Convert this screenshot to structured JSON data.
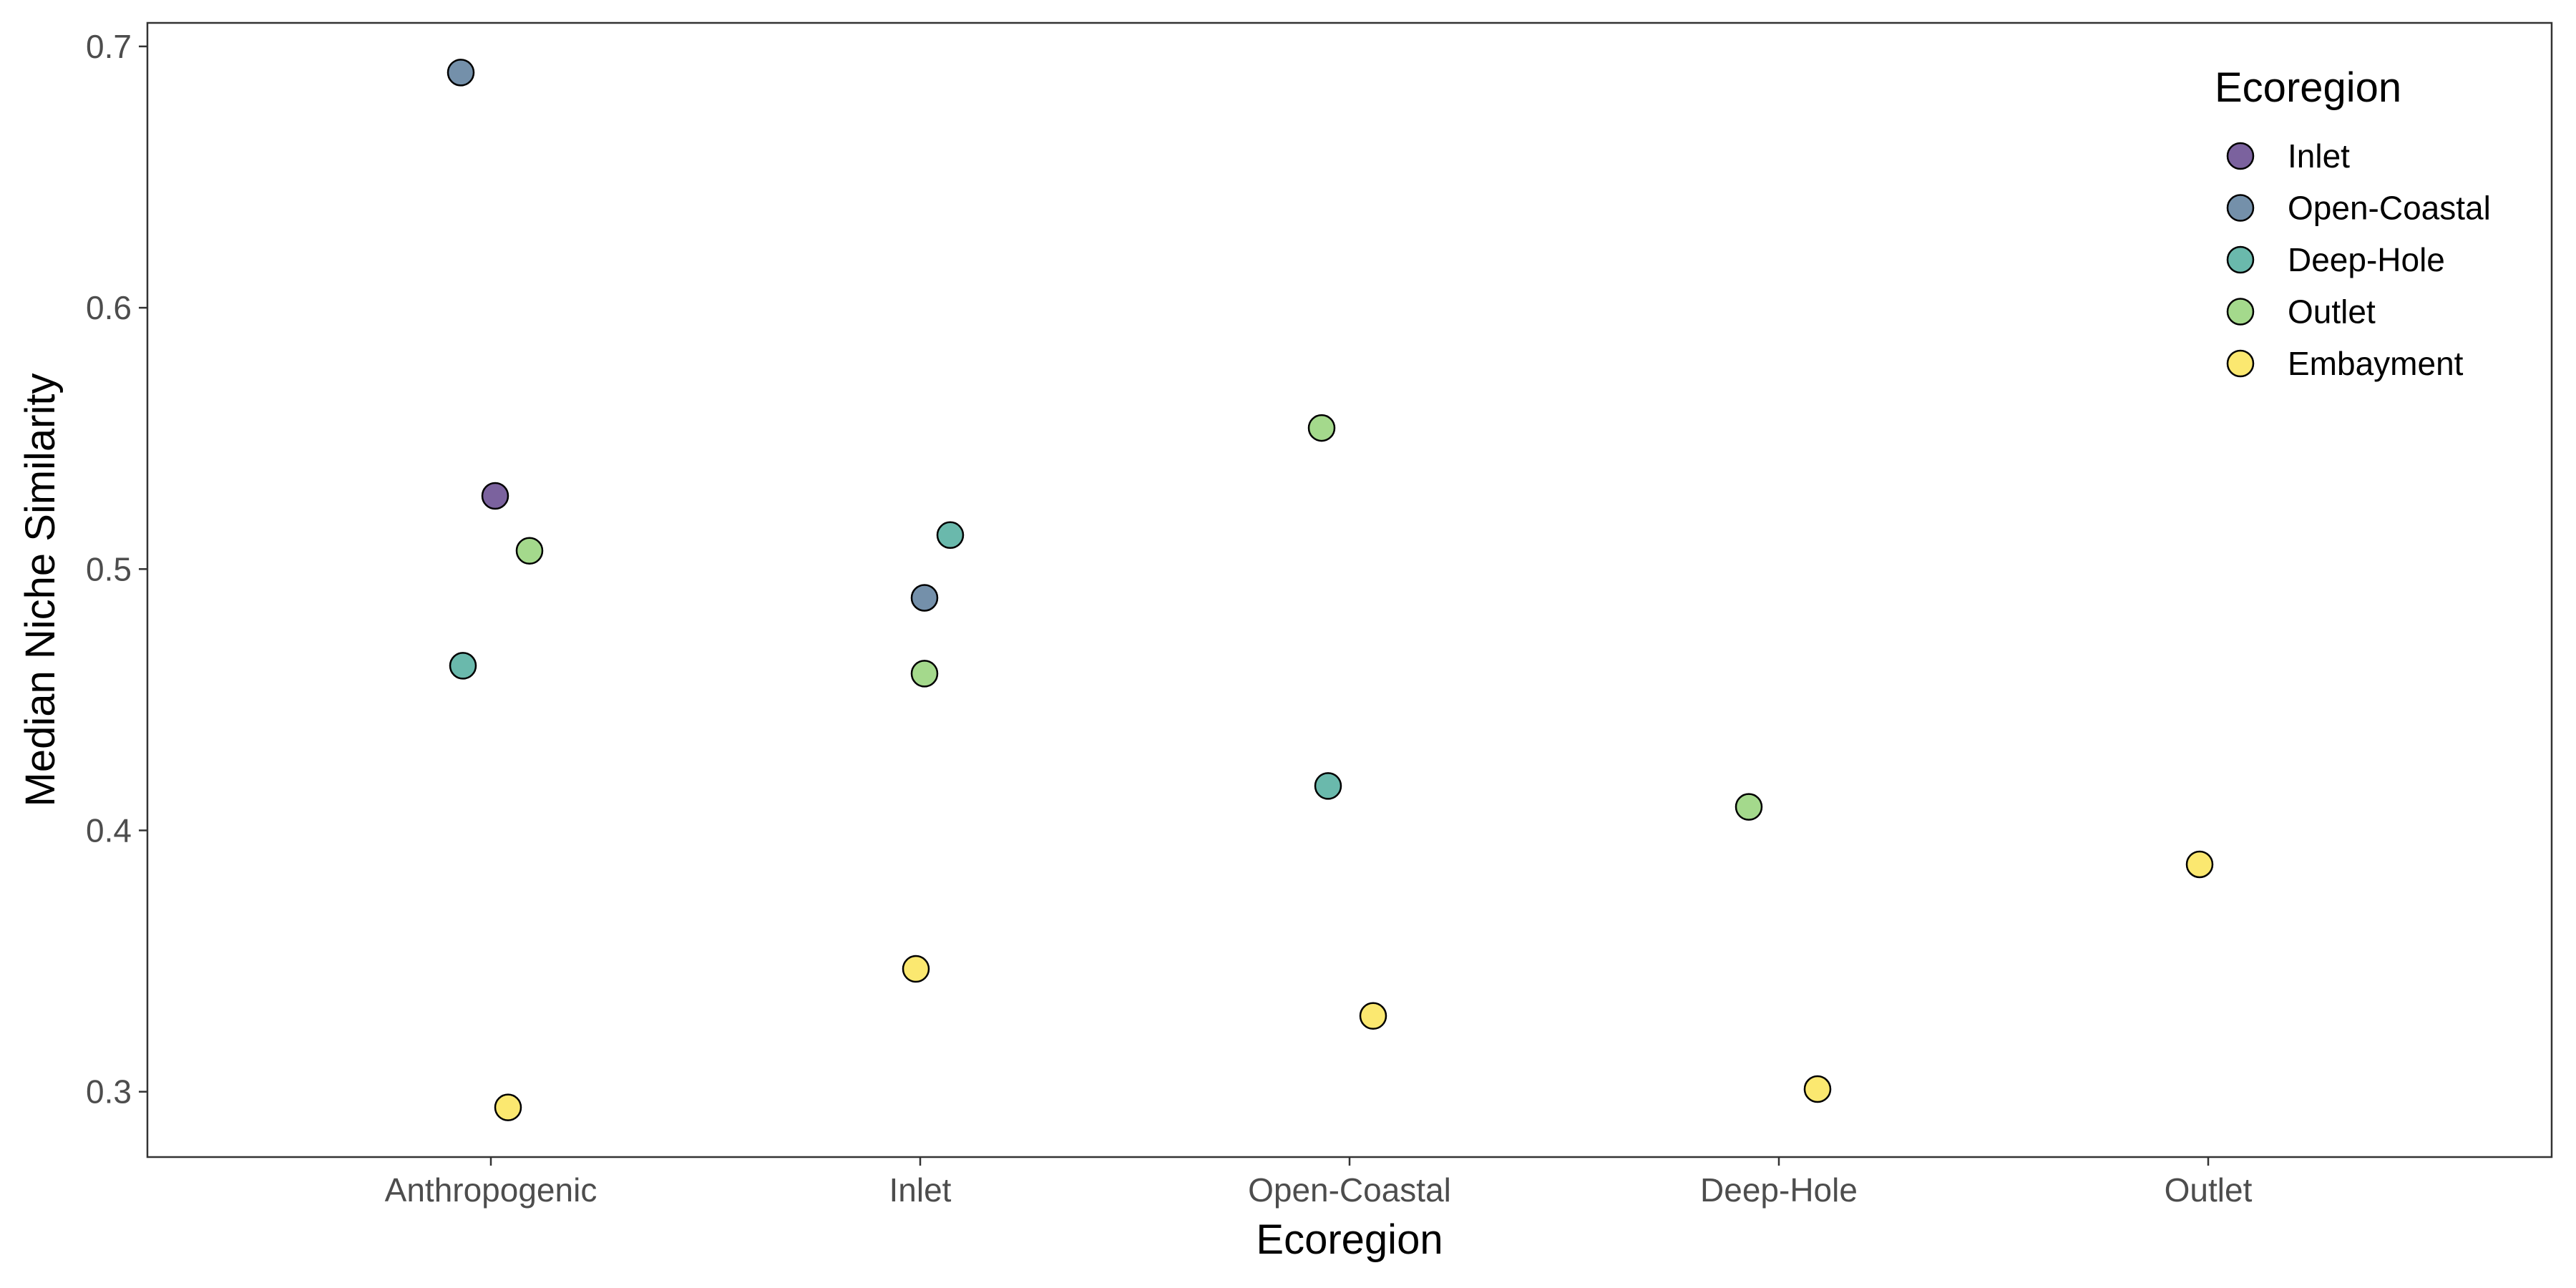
{
  "chart_data": {
    "type": "scatter",
    "xlabel": "Ecoregion",
    "ylabel": "Median Niche Similarity",
    "categories": [
      "Anthropogenic",
      "Inlet",
      "Open-Coastal",
      "Deep-Hole",
      "Outlet"
    ],
    "ylim": [
      0.275,
      0.709
    ],
    "y_ticks": [
      0.3,
      0.4,
      0.5,
      0.6,
      0.7
    ],
    "y_tick_labels": [
      "0.3",
      "0.4",
      "0.5",
      "0.6",
      "0.7"
    ],
    "grid": false,
    "legend": {
      "title": "Ecoregion",
      "placement": "top-right",
      "entries": [
        "Inlet",
        "Open-Coastal",
        "Deep-Hole",
        "Outlet",
        "Embayment"
      ]
    },
    "series": [
      {
        "name": "Inlet",
        "color": "#7b629e",
        "points": [
          {
            "category": "Anthropogenic",
            "jitter": 0.01,
            "y": 0.528
          }
        ]
      },
      {
        "name": "Open-Coastal",
        "color": "#7490aa",
        "points": [
          {
            "category": "Anthropogenic",
            "jitter": -0.07,
            "y": 0.69
          },
          {
            "category": "Inlet",
            "jitter": 0.01,
            "y": 0.489
          }
        ]
      },
      {
        "name": "Deep-Hole",
        "color": "#6ab9ac",
        "points": [
          {
            "category": "Anthropogenic",
            "jitter": -0.065,
            "y": 0.463
          },
          {
            "category": "Inlet",
            "jitter": 0.07,
            "y": 0.513
          },
          {
            "category": "Open-Coastal",
            "jitter": -0.05,
            "y": 0.417
          }
        ]
      },
      {
        "name": "Outlet",
        "color": "#a4d98c",
        "points": [
          {
            "category": "Anthropogenic",
            "jitter": 0.09,
            "y": 0.507
          },
          {
            "category": "Inlet",
            "jitter": 0.01,
            "y": 0.46
          },
          {
            "category": "Open-Coastal",
            "jitter": -0.065,
            "y": 0.554
          },
          {
            "category": "Deep-Hole",
            "jitter": -0.07,
            "y": 0.409
          }
        ]
      },
      {
        "name": "Embayment",
        "color": "#fbe870",
        "points": [
          {
            "category": "Anthropogenic",
            "jitter": 0.04,
            "y": 0.294
          },
          {
            "category": "Inlet",
            "jitter": -0.01,
            "y": 0.347
          },
          {
            "category": "Open-Coastal",
            "jitter": 0.055,
            "y": 0.329
          },
          {
            "category": "Deep-Hole",
            "jitter": 0.09,
            "y": 0.301
          },
          {
            "category": "Outlet",
            "jitter": -0.02,
            "y": 0.387
          }
        ]
      }
    ]
  }
}
